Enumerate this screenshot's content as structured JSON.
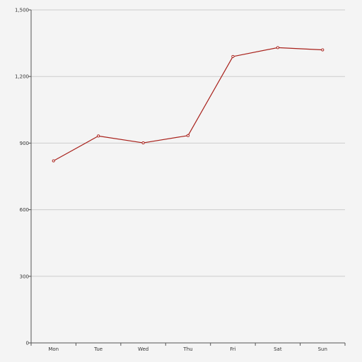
{
  "chart_data": {
    "type": "line",
    "categories": [
      "Mon",
      "Tue",
      "Wed",
      "Thu",
      "Fri",
      "Sat",
      "Sun"
    ],
    "series": [
      {
        "values": [
          820,
          932,
          901,
          934,
          1290,
          1330,
          1320
        ]
      }
    ],
    "ylim": [
      0,
      1500
    ],
    "yticks": [
      0,
      300,
      600,
      900,
      1200,
      1500
    ],
    "ytick_labels": [
      "0",
      "300",
      "600",
      "900",
      "1,200",
      "1,500"
    ],
    "grid": true,
    "legend": "none",
    "colors": {
      "background": "#f4f4f4",
      "line": "#a8201a",
      "grid": "#cccccc",
      "axis": "#555555"
    }
  }
}
